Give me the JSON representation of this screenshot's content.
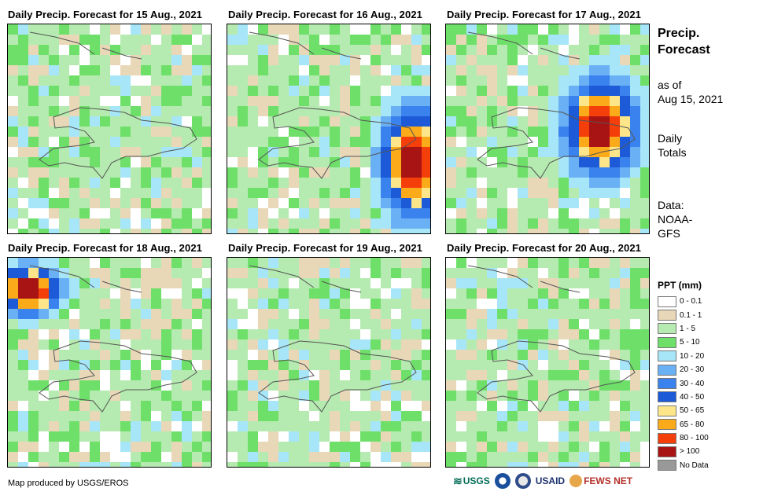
{
  "panels": [
    {
      "title": "Daily Precip. Forecast for 15 Aug., 2021"
    },
    {
      "title": "Daily Precip. Forecast for 16 Aug., 2021"
    },
    {
      "title": "Daily Precip. Forecast for 17 Aug., 2021"
    },
    {
      "title": "Daily Precip. Forecast for 18 Aug., 2021"
    },
    {
      "title": "Daily Precip. Forecast for 19 Aug., 2021"
    },
    {
      "title": "Daily Precip. Forecast for 20 Aug., 2021"
    }
  ],
  "side": {
    "title_line1": "Precip.",
    "title_line2": "Forecast",
    "asof_line1": "as of",
    "asof_line2": "Aug 15, 2021",
    "daily_line1": "Daily",
    "daily_line2": "Totals",
    "data_line1": "Data:",
    "data_line2": "NOAA-",
    "data_line3": "GFS"
  },
  "legend": {
    "title": "PPT (mm)",
    "items": [
      {
        "label": "0 - 0.1",
        "color": "#ffffff"
      },
      {
        "label": "0.1 - 1",
        "color": "#e9d8b8"
      },
      {
        "label": "1 - 5",
        "color": "#b5ebb0"
      },
      {
        "label": "5 - 10",
        "color": "#6ee06a"
      },
      {
        "label": "10 - 20",
        "color": "#a6e6f8"
      },
      {
        "label": "20 - 30",
        "color": "#6ab0f4"
      },
      {
        "label": "30 - 40",
        "color": "#3a82ee"
      },
      {
        "label": "40 - 50",
        "color": "#1c5ad8"
      },
      {
        "label": "50 - 65",
        "color": "#fde68a"
      },
      {
        "label": "65 - 80",
        "color": "#fbaa1a"
      },
      {
        "label": "80 - 100",
        "color": "#f53f0a"
      },
      {
        "label": "> 100",
        "color": "#a81414"
      },
      {
        "label": "No Data",
        "color": "#999999"
      }
    ]
  },
  "credit": "Map produced by USGS/EROS",
  "logos": {
    "usgs": "USGS",
    "usaid": "USAID",
    "fewsnet": "FEWS NET"
  }
}
